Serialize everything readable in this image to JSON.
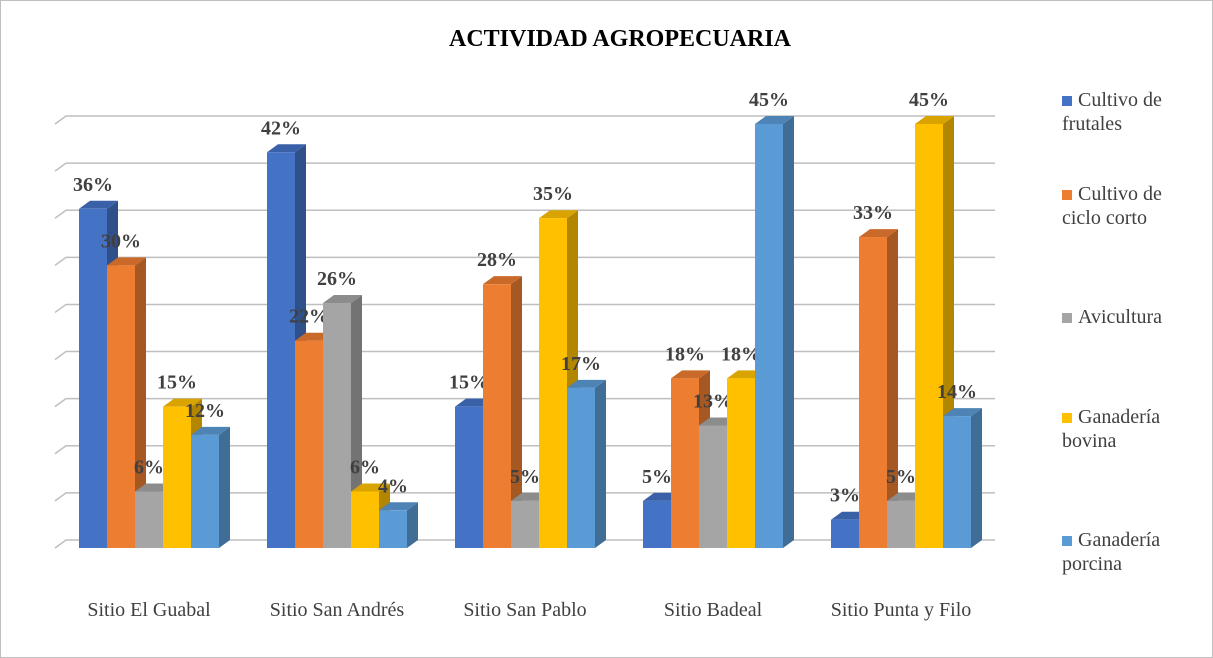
{
  "chart_data": {
    "type": "bar3d",
    "title": "ACTIVIDAD AGROPECUARIA",
    "categories": [
      "Sitio El Guabal",
      "Sitio San Andrés",
      "Sitio San Pablo",
      "Sitio Badeal",
      "Sitio Punta y Filo"
    ],
    "series": [
      {
        "name": "Cultivo de frutales",
        "color": "#4472c4",
        "values": [
          36,
          42,
          15,
          5,
          3
        ],
        "value_labels": [
          "36%",
          "42%",
          "15%",
          "5%",
          "3%"
        ]
      },
      {
        "name": "Cultivo de ciclo corto",
        "color": "#ed7d31",
        "values": [
          30,
          22,
          28,
          18,
          33
        ],
        "value_labels": [
          "30%",
          "22%",
          "28%",
          "18%",
          "33%"
        ]
      },
      {
        "name": "Avicultura",
        "color": "#a5a5a5",
        "values": [
          6,
          26,
          5,
          13,
          5
        ],
        "value_labels": [
          "6%",
          "26%",
          "5%",
          "13%",
          "5%"
        ]
      },
      {
        "name": "Ganadería bovina",
        "color": "#ffc000",
        "values": [
          15,
          6,
          35,
          18,
          45
        ],
        "value_labels": [
          "15%",
          "6%",
          "35%",
          "18%",
          "45%"
        ]
      },
      {
        "name": "Ganadería porcina",
        "color": "#5b9bd5",
        "values": [
          12,
          4,
          17,
          45,
          14
        ],
        "value_labels": [
          "12%",
          "4%",
          "17%",
          "45%",
          "14%"
        ]
      }
    ],
    "ylim": [
      0,
      45
    ],
    "yticks": [
      0,
      5,
      10,
      15,
      20,
      25,
      30,
      35,
      40,
      45
    ],
    "grid": true,
    "legend": "right"
  }
}
